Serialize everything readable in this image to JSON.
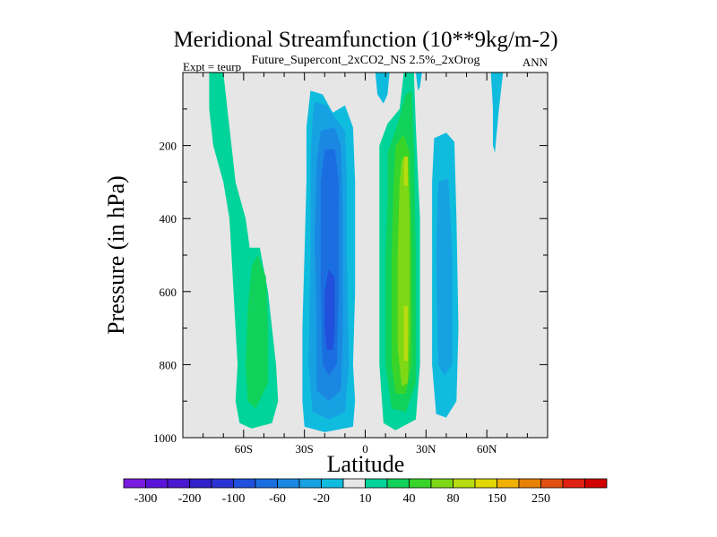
{
  "chart_data": {
    "type": "heatmap",
    "title": "Meridional Streamfunction (10**9kg/m-2)",
    "subtitle": "Future_Supercont_2xCO2_NS 2.5%_2xOrog",
    "left_label": "Expt = teurp",
    "right_label": "ANN",
    "xlabel": "Latitude",
    "ylabel": "Pressure (in hPa)",
    "xlim": [
      -90,
      90
    ],
    "ylim": [
      0,
      1000
    ],
    "y_inverted": true,
    "background_color": "#e6e6e6",
    "x_ticks": [
      {
        "value": -60,
        "label": "60S"
      },
      {
        "value": -30,
        "label": "30S"
      },
      {
        "value": 0,
        "label": "0"
      },
      {
        "value": 30,
        "label": "30N"
      },
      {
        "value": 60,
        "label": "60N"
      }
    ],
    "y_ticks": [
      {
        "value": 200,
        "label": "200"
      },
      {
        "value": 400,
        "label": "400"
      },
      {
        "value": 600,
        "label": "600"
      },
      {
        "value": 800,
        "label": "800"
      },
      {
        "value": 1000,
        "label": "1000"
      }
    ],
    "colorbar": {
      "colors": [
        "#7a1be0",
        "#5a14d8",
        "#4a18d0",
        "#3220c8",
        "#2a34d2",
        "#2050dc",
        "#1a6ee0",
        "#1a88e2",
        "#16a2e2",
        "#10bcde",
        "#e6e6e6",
        "#00d49a",
        "#10d25a",
        "#38d42a",
        "#7ed816",
        "#b8dc10",
        "#e0d800",
        "#f0b000",
        "#e88000",
        "#e05010",
        "#e02010",
        "#d00000"
      ],
      "labels": [
        {
          "after_box": 1,
          "text": "-300"
        },
        {
          "after_box": 3,
          "text": "-200"
        },
        {
          "after_box": 5,
          "text": "-100"
        },
        {
          "after_box": 7,
          "text": "-60"
        },
        {
          "after_box": 9,
          "text": "-20"
        },
        {
          "after_box": 11,
          "text": "10"
        },
        {
          "after_box": 13,
          "text": "40"
        },
        {
          "after_box": 15,
          "text": "80"
        },
        {
          "after_box": 17,
          "text": "150"
        },
        {
          "after_box": 19,
          "text": "250"
        }
      ]
    },
    "regions": [
      {
        "name": "sh-polar-outer",
        "color": "#00d49a",
        "points": [
          [
            -77,
            0
          ],
          [
            -70,
            0
          ],
          [
            -68,
            100
          ],
          [
            -66,
            200
          ],
          [
            -64,
            300
          ],
          [
            -59,
            400
          ],
          [
            -57,
            480
          ],
          [
            -52,
            480
          ],
          [
            -48,
            600
          ],
          [
            -46,
            700
          ],
          [
            -44,
            800
          ],
          [
            -43,
            900
          ],
          [
            -46,
            960
          ],
          [
            -56,
            975
          ],
          [
            -62,
            960
          ],
          [
            -64,
            900
          ],
          [
            -63,
            800
          ],
          [
            -64,
            700
          ],
          [
            -66,
            500
          ],
          [
            -67,
            400
          ],
          [
            -70,
            300
          ],
          [
            -75,
            200
          ],
          [
            -77,
            100
          ]
        ]
      },
      {
        "name": "sh-polar-inner",
        "color": "#10d25a",
        "points": [
          [
            -56,
            530
          ],
          [
            -53,
            500
          ],
          [
            -49,
            560
          ],
          [
            -48,
            700
          ],
          [
            -48,
            850
          ],
          [
            -54,
            920
          ],
          [
            -58,
            900
          ],
          [
            -59,
            800
          ],
          [
            -58,
            650
          ]
        ]
      },
      {
        "name": "hadley-sh-outer",
        "color": "#10bcde",
        "points": [
          [
            -27,
            50
          ],
          [
            -21,
            60
          ],
          [
            -16,
            110
          ],
          [
            -10,
            90
          ],
          [
            -6,
            150
          ],
          [
            -5,
            300
          ],
          [
            -5,
            600
          ],
          [
            -6,
            800
          ],
          [
            -5,
            900
          ],
          [
            -6,
            970
          ],
          [
            -20,
            985
          ],
          [
            -30,
            970
          ],
          [
            -31,
            900
          ],
          [
            -31,
            700
          ],
          [
            -30,
            500
          ],
          [
            -29,
            300
          ],
          [
            -29,
            150
          ]
        ]
      },
      {
        "name": "hadley-sh-1",
        "color": "#16a2e2",
        "points": [
          [
            -25,
            80
          ],
          [
            -19,
            90
          ],
          [
            -14,
            130
          ],
          [
            -10,
            160
          ],
          [
            -9,
            300
          ],
          [
            -9,
            500
          ],
          [
            -8,
            800
          ],
          [
            -10,
            930
          ],
          [
            -18,
            950
          ],
          [
            -26,
            930
          ],
          [
            -28,
            800
          ],
          [
            -27,
            500
          ],
          [
            -27,
            250
          ],
          [
            -26,
            120
          ]
        ]
      },
      {
        "name": "hadley-sh-2",
        "color": "#1a88e2",
        "points": [
          [
            -22,
            160
          ],
          [
            -15,
            150
          ],
          [
            -12,
            200
          ],
          [
            -11,
            400
          ],
          [
            -11,
            700
          ],
          [
            -12,
            870
          ],
          [
            -18,
            900
          ],
          [
            -24,
            870
          ],
          [
            -24,
            700
          ],
          [
            -25,
            450
          ],
          [
            -24,
            250
          ]
        ]
      },
      {
        "name": "hadley-sh-3",
        "color": "#1a6ee0",
        "points": [
          [
            -20,
            210
          ],
          [
            -15,
            210
          ],
          [
            -13,
            300
          ],
          [
            -13,
            600
          ],
          [
            -14,
            800
          ],
          [
            -18,
            830
          ],
          [
            -21,
            800
          ],
          [
            -22,
            600
          ],
          [
            -22,
            300
          ]
        ]
      },
      {
        "name": "hadley-sh-4",
        "color": "#2050dc",
        "points": [
          [
            -18,
            540
          ],
          [
            -15,
            560
          ],
          [
            -15,
            700
          ],
          [
            -16,
            760
          ],
          [
            -19,
            760
          ],
          [
            -20,
            700
          ],
          [
            -20,
            600
          ]
        ]
      },
      {
        "name": "hadley-nh-outer",
        "color": "#00d49a",
        "points": [
          [
            7,
            200
          ],
          [
            11,
            140
          ],
          [
            17,
            100
          ],
          [
            19,
            0
          ],
          [
            24,
            0
          ],
          [
            25,
            150
          ],
          [
            27,
            400
          ],
          [
            27,
            600
          ],
          [
            27,
            800
          ],
          [
            25,
            950
          ],
          [
            15,
            980
          ],
          [
            9,
            960
          ],
          [
            7,
            800
          ],
          [
            7,
            500
          ],
          [
            7,
            300
          ]
        ]
      },
      {
        "name": "hadley-nh-1",
        "color": "#10d25a",
        "points": [
          [
            11,
            220
          ],
          [
            16,
            140
          ],
          [
            20,
            60
          ],
          [
            23,
            50
          ],
          [
            24,
            200
          ],
          [
            25,
            500
          ],
          [
            25,
            850
          ],
          [
            20,
            930
          ],
          [
            13,
            920
          ],
          [
            10,
            800
          ],
          [
            10,
            500
          ],
          [
            11,
            350
          ]
        ]
      },
      {
        "name": "hadley-nh-2",
        "color": "#38d42a",
        "points": [
          [
            15,
            200
          ],
          [
            19,
            170
          ],
          [
            22,
            220
          ],
          [
            23,
            500
          ],
          [
            23,
            800
          ],
          [
            20,
            880
          ],
          [
            15,
            880
          ],
          [
            13,
            800
          ],
          [
            13,
            500
          ],
          [
            14,
            300
          ]
        ]
      },
      {
        "name": "hadley-nh-3",
        "color": "#7ed816",
        "points": [
          [
            18,
            240
          ],
          [
            21,
            230
          ],
          [
            22,
            400
          ],
          [
            22,
            700
          ],
          [
            21,
            850
          ],
          [
            18,
            860
          ],
          [
            16,
            750
          ],
          [
            16,
            500
          ],
          [
            17,
            300
          ]
        ]
      },
      {
        "name": "hadley-nh-4",
        "color": "#b8dc10",
        "points": [
          [
            19,
            230
          ],
          [
            21,
            230
          ],
          [
            21,
            310
          ],
          [
            19,
            310
          ]
        ]
      },
      {
        "name": "hadley-nh-5",
        "color": "#b8dc10",
        "points": [
          [
            19,
            640
          ],
          [
            21,
            640
          ],
          [
            21,
            790
          ],
          [
            19,
            790
          ]
        ]
      },
      {
        "name": "ferrel-nh-outer",
        "color": "#10bcde",
        "points": [
          [
            34,
            180
          ],
          [
            40,
            165
          ],
          [
            44,
            190
          ],
          [
            45,
            400
          ],
          [
            46,
            700
          ],
          [
            45,
            900
          ],
          [
            40,
            945
          ],
          [
            35,
            935
          ],
          [
            33,
            800
          ],
          [
            33,
            500
          ],
          [
            33,
            300
          ]
        ]
      },
      {
        "name": "ferrel-nh-inner",
        "color": "#16a2e2",
        "points": [
          [
            36,
            300
          ],
          [
            41,
            290
          ],
          [
            43,
            500
          ],
          [
            43,
            800
          ],
          [
            39,
            830
          ],
          [
            36,
            800
          ],
          [
            35,
            500
          ]
        ]
      },
      {
        "name": "upper-top-1",
        "color": "#10bcde",
        "points": [
          [
            5,
            0
          ],
          [
            12,
            0
          ],
          [
            11,
            60
          ],
          [
            9,
            85
          ],
          [
            6,
            60
          ]
        ]
      },
      {
        "name": "upper-top-2",
        "color": "#10bcde",
        "points": [
          [
            25,
            0
          ],
          [
            28,
            0
          ],
          [
            27,
            40
          ],
          [
            26,
            50
          ]
        ]
      },
      {
        "name": "upper-top-3",
        "color": "#10bcde",
        "points": [
          [
            62,
            0
          ],
          [
            68,
            0
          ],
          [
            66,
            100
          ],
          [
            64,
            220
          ],
          [
            63,
            200
          ],
          [
            63,
            100
          ]
        ]
      }
    ]
  }
}
